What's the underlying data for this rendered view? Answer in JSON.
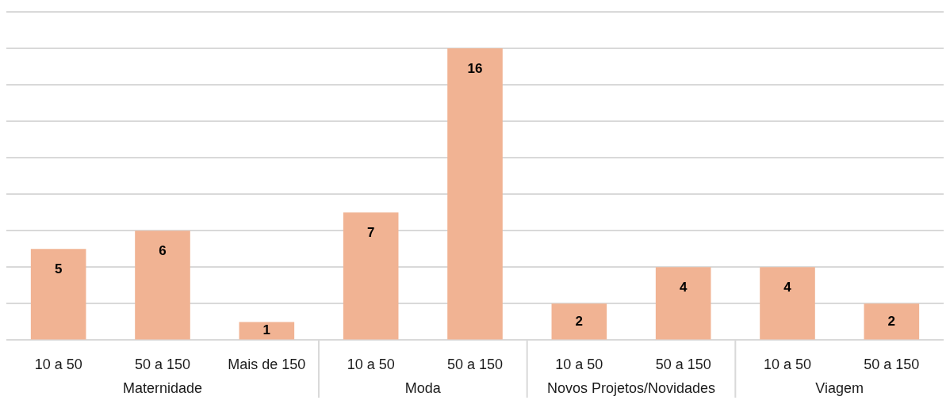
{
  "chart_data": {
    "type": "bar",
    "categories": [
      "10 a 50",
      "50 a 150",
      "Mais de 150",
      "10 a 50",
      "50 a 150",
      "10 a 50",
      "50 a 150",
      "10 a 50",
      "50 a 150"
    ],
    "values": [
      5,
      6,
      1,
      7,
      16,
      2,
      4,
      4,
      2
    ],
    "color": "#f1b393",
    "grid": "y",
    "tick_labels": "x",
    "data_labels": true,
    "annotations": [
      "Maternidade",
      "Moda",
      "Novos Projetos/Novidades",
      "Viagem"
    ]
  }
}
